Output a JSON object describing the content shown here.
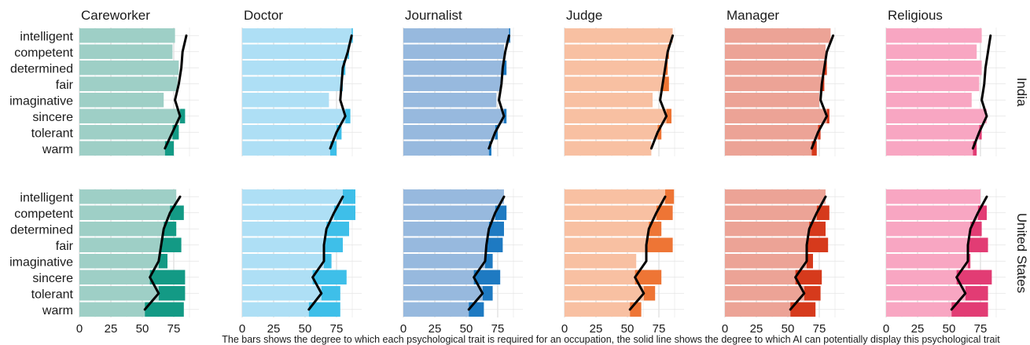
{
  "chart_data": {
    "type": "bar",
    "traits": [
      "intelligent",
      "competent",
      "determined",
      "fair",
      "imaginative",
      "sincere",
      "tolerant",
      "warm"
    ],
    "occupations": [
      {
        "name": "Careworker",
        "colors": {
          "light": "#9ecfc6",
          "dark": "#139a85"
        }
      },
      {
        "name": "Doctor",
        "colors": {
          "light": "#aedff5",
          "dark": "#3ebfe9"
        }
      },
      {
        "name": "Journalist",
        "colors": {
          "light": "#97b9de",
          "dark": "#1e7ac2"
        }
      },
      {
        "name": "Judge",
        "colors": {
          "light": "#f8c0a2",
          "dark": "#ee7535"
        }
      },
      {
        "name": "Manager",
        "colors": {
          "light": "#eca396",
          "dark": "#d63a1c"
        }
      },
      {
        "name": "Religious",
        "colors": {
          "light": "#f8a6c2",
          "dark": "#e23c74"
        }
      }
    ],
    "countries": [
      "India",
      "United States"
    ],
    "xlim": [
      0,
      95
    ],
    "x_ticks": [
      0,
      25,
      50,
      75
    ],
    "grid": true,
    "caption": "The bars shows the degree to which each psychological trait is required for an occupation, the solid line shows the degree to which AI can potentially display this psychological trait",
    "panels": {
      "India": {
        "Careworker": {
          "required": [
            76,
            74,
            79,
            78,
            67,
            84,
            79,
            75
          ],
          "ai": [
            85,
            82,
            81,
            79,
            76,
            80,
            74,
            68
          ]
        },
        "Doctor": {
          "required": [
            88,
            85,
            82,
            80,
            69,
            86,
            79,
            75
          ],
          "ai": [
            87,
            84,
            80,
            79,
            78,
            82,
            75,
            70
          ]
        },
        "Journalist": {
          "required": [
            85,
            80,
            82,
            78,
            74,
            82,
            75,
            70
          ],
          "ai": [
            84,
            81,
            79,
            78,
            76,
            80,
            73,
            68
          ]
        },
        "Judge": {
          "required": [
            86,
            83,
            82,
            83,
            70,
            85,
            77,
            69
          ],
          "ai": [
            86,
            82,
            80,
            78,
            76,
            81,
            74,
            69
          ]
        },
        "Manager": {
          "required": [
            84,
            80,
            81,
            79,
            75,
            83,
            76,
            73
          ],
          "ai": [
            86,
            81,
            79,
            77,
            76,
            81,
            74,
            69
          ]
        },
        "Religious": {
          "required": [
            76,
            72,
            76,
            74,
            68,
            80,
            76,
            72
          ],
          "ai": [
            83,
            81,
            79,
            78,
            76,
            80,
            74,
            69
          ]
        }
      },
      "United States": {
        "Careworker": {
          "required": [
            77,
            83,
            77,
            81,
            70,
            84,
            84,
            83
          ],
          "ai": [
            80,
            72,
            67,
            65,
            63,
            56,
            63,
            52
          ]
        },
        "Doctor": {
          "required": [
            90,
            90,
            85,
            80,
            71,
            83,
            78,
            78
          ],
          "ai": [
            80,
            73,
            67,
            65,
            65,
            56,
            63,
            53
          ]
        },
        "Journalist": {
          "required": [
            80,
            82,
            80,
            79,
            71,
            77,
            71,
            64
          ],
          "ai": [
            80,
            73,
            68,
            66,
            65,
            56,
            63,
            52
          ]
        },
        "Judge": {
          "required": [
            87,
            86,
            77,
            86,
            57,
            77,
            72,
            61
          ],
          "ai": [
            80,
            73,
            67,
            65,
            65,
            56,
            63,
            52
          ]
        },
        "Manager": {
          "required": [
            80,
            83,
            80,
            82,
            70,
            77,
            76,
            72
          ],
          "ai": [
            80,
            73,
            67,
            65,
            65,
            56,
            63,
            52
          ]
        },
        "Religious": {
          "required": [
            75,
            80,
            76,
            81,
            67,
            84,
            81,
            81
          ],
          "ai": [
            80,
            73,
            67,
            65,
            65,
            56,
            63,
            52
          ]
        }
      }
    }
  }
}
